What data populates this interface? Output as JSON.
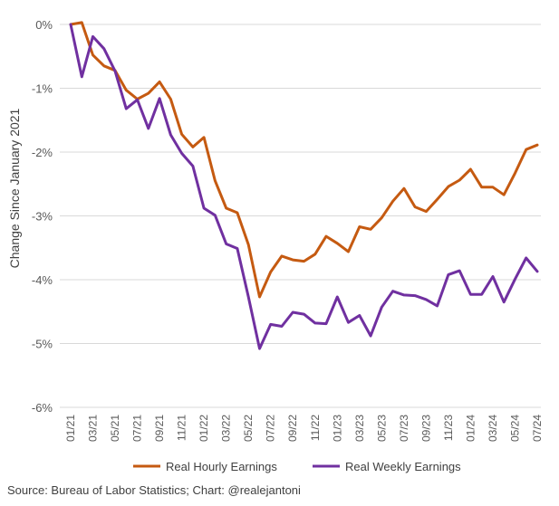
{
  "chart_data": {
    "type": "line",
    "ylabel": "Change Since January 2021",
    "xlabel": "",
    "ylim": [
      -6,
      0
    ],
    "y_ticks": [
      0,
      -1,
      -2,
      -3,
      -4,
      -5,
      -6
    ],
    "y_tick_labels": [
      "0%",
      "-1%",
      "-2%",
      "-3%",
      "-4%",
      "-5%",
      "-6%"
    ],
    "x_tick_labels": [
      "01/21",
      "03/21",
      "05/21",
      "07/21",
      "09/21",
      "11/21",
      "01/22",
      "03/22",
      "05/22",
      "07/22",
      "09/22",
      "11/22",
      "01/23",
      "03/23",
      "05/23",
      "07/23",
      "09/23",
      "11/23",
      "01/24",
      "03/24",
      "05/24",
      "07/24"
    ],
    "x": [
      "01/21",
      "02/21",
      "03/21",
      "04/21",
      "05/21",
      "06/21",
      "07/21",
      "08/21",
      "09/21",
      "10/21",
      "11/21",
      "12/21",
      "01/22",
      "02/22",
      "03/22",
      "04/22",
      "05/22",
      "06/22",
      "07/22",
      "08/22",
      "09/22",
      "10/22",
      "11/22",
      "12/22",
      "01/23",
      "02/23",
      "03/23",
      "04/23",
      "05/23",
      "06/23",
      "07/23",
      "08/23",
      "09/23",
      "10/23",
      "11/23",
      "12/23",
      "01/24",
      "02/24",
      "03/24",
      "04/24",
      "05/24",
      "06/24",
      "07/24"
    ],
    "series": [
      {
        "name": "Real Hourly Earnings",
        "color": "#C55A11",
        "values": [
          0.0,
          0.03,
          -0.48,
          -0.65,
          -0.72,
          -1.03,
          -1.17,
          -1.08,
          -0.9,
          -1.17,
          -1.72,
          -1.92,
          -1.77,
          -2.45,
          -2.88,
          -2.95,
          -3.45,
          -4.27,
          -3.88,
          -3.63,
          -3.69,
          -3.71,
          -3.6,
          -3.32,
          -3.43,
          -3.56,
          -3.17,
          -3.21,
          -3.03,
          -2.77,
          -2.57,
          -2.86,
          -2.93,
          -2.74,
          -2.54,
          -2.44,
          -2.27,
          -2.55,
          -2.55,
          -2.67,
          -2.33,
          -1.96,
          -1.89
        ]
      },
      {
        "name": "Real Weekly Earnings",
        "color": "#7030A0",
        "values": [
          0.0,
          -0.82,
          -0.19,
          -0.38,
          -0.73,
          -1.32,
          -1.18,
          -1.63,
          -1.16,
          -1.73,
          -2.02,
          -2.22,
          -2.88,
          -2.99,
          -3.44,
          -3.51,
          -4.27,
          -5.08,
          -4.7,
          -4.73,
          -4.51,
          -4.54,
          -4.68,
          -4.69,
          -4.27,
          -4.67,
          -4.56,
          -4.88,
          -4.43,
          -4.18,
          -4.24,
          -4.25,
          -4.31,
          -4.41,
          -3.92,
          -3.86,
          -4.23,
          -4.23,
          -3.95,
          -4.35,
          -3.99,
          -3.66,
          -3.87
        ]
      }
    ],
    "grid": true,
    "legend": "bottom"
  },
  "footer": {
    "source": "Source: Bureau of Labor Statistics; Chart: @realejantoni"
  }
}
